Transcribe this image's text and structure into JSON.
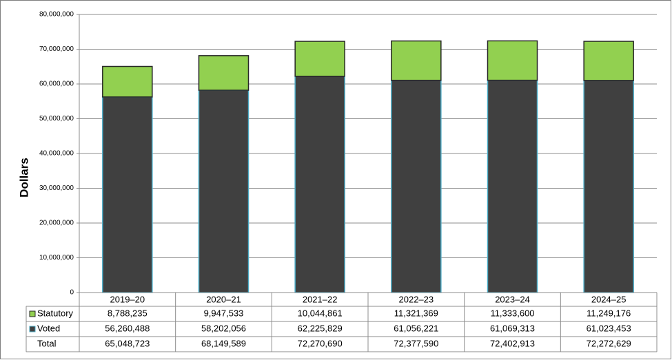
{
  "chart_data": {
    "type": "stacked_bar",
    "y_label": "Dollars",
    "categories": [
      "2019–20",
      "2020–21",
      "2021–22",
      "2022–23",
      "2023–24",
      "2024–25"
    ],
    "series": [
      {
        "name": "Voted",
        "color": "#404040",
        "edge_color": "#4bacc6",
        "values": [
          56260488,
          58202056,
          62225829,
          61056221,
          61069313,
          61023453
        ],
        "value_labels": [
          "56,260,488",
          "58,202,056",
          "62,225,829",
          "61,056,221",
          "61,069,313",
          "61,023,453"
        ]
      },
      {
        "name": "Statutory",
        "color": "#92d050",
        "edge_color": "#262626",
        "values": [
          8788235,
          9947533,
          10044861,
          11321369,
          11333600,
          11249176
        ],
        "value_labels": [
          "8,788,235",
          "9,947,533",
          "10,044,861",
          "11,321,369",
          "11,333,600",
          "11,249,176"
        ]
      }
    ],
    "total_row": {
      "label": "Total",
      "values": [
        "65,048,723",
        "68,149,589",
        "72,270,690",
        "72,377,590",
        "72,402,913",
        "72,272,629"
      ]
    },
    "ylim": [
      0,
      80000000
    ],
    "yticks": [
      0,
      {
        "value": 10000000,
        "label": "10,000,000"
      },
      {
        "value": 20000000,
        "label": "20,000,000"
      },
      {
        "value": 30000000,
        "label": "30,000,000"
      },
      {
        "value": 40000000,
        "label": "40,000,000"
      },
      {
        "value": 50000000,
        "label": "50,000,000"
      },
      {
        "value": 60000000,
        "label": "60,000,000"
      },
      {
        "value": 70000000,
        "label": "70,000,000"
      },
      {
        "value": 80000000,
        "label": "80,000,000"
      }
    ],
    "grid": true
  }
}
